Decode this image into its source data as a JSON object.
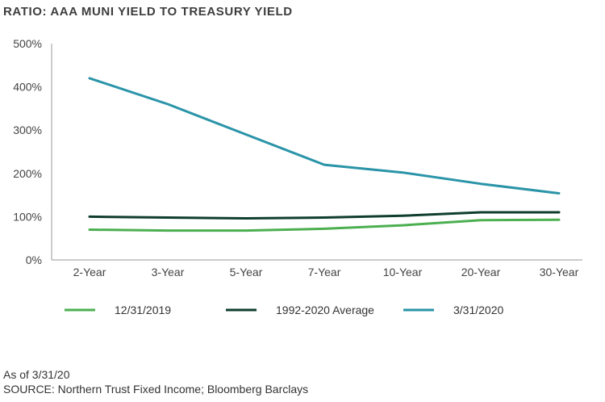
{
  "title": "RATIO: AAA MUNI YIELD TO TREASURY YIELD",
  "footnote": "As of 3/31/20",
  "source": "SOURCE: Northern Trust Fixed Income; Bloomberg Barclays",
  "chart_data": {
    "type": "line",
    "title": "RATIO: AAA MUNI YIELD TO TREASURY YIELD",
    "xlabel": "",
    "ylabel": "",
    "categories": [
      "2-Year",
      "3-Year",
      "5-Year",
      "7-Year",
      "10-Year",
      "20-Year",
      "30-Year"
    ],
    "ylim": [
      0,
      500
    ],
    "yticks": [
      0,
      100,
      200,
      300,
      400,
      500
    ],
    "ytick_labels": [
      "0%",
      "100%",
      "200%",
      "300%",
      "400%",
      "500%"
    ],
    "grid": false,
    "legend_position": "bottom",
    "series": [
      {
        "name": "12/31/2019",
        "color": "#4caf50",
        "values": [
          70,
          68,
          68,
          72,
          80,
          92,
          93
        ]
      },
      {
        "name": "1992-2020 Average",
        "color": "#0f3d2e",
        "values": [
          100,
          98,
          96,
          98,
          102,
          110,
          110
        ]
      },
      {
        "name": "3/31/2020",
        "color": "#2a94a8",
        "values": [
          420,
          360,
          290,
          220,
          202,
          176,
          154
        ]
      }
    ]
  }
}
